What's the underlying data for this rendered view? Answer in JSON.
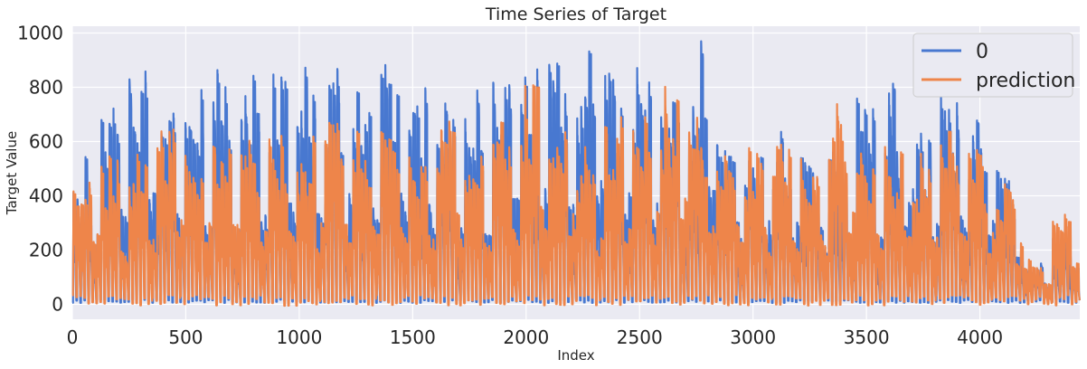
{
  "chart_data": {
    "type": "line",
    "title": "Time Series of Target",
    "xlabel": "Index",
    "ylabel": "Target Value",
    "xlim": [
      0,
      4440
    ],
    "ylim": [
      -55,
      1025
    ],
    "xticks": [
      0,
      500,
      1000,
      1500,
      2000,
      2500,
      3000,
      3500,
      4000
    ],
    "yticks": [
      0,
      200,
      400,
      600,
      800,
      1000
    ],
    "grid": true,
    "legend_position": "top-right",
    "series": [
      {
        "name": "0",
        "color": "#4878d0",
        "weekly_peaks": [
          570,
          750,
          870,
          720,
          790,
          870,
          910,
          870,
          880,
          870,
          900,
          900,
          860,
          780,
          800,
          870,
          900,
          970,
          980,
          870,
          890,
          860,
          970,
          660,
          650,
          670,
          590,
          610,
          780,
          860,
          680,
          810,
          740,
          520,
          180,
          280
        ]
      },
      {
        "name": "prediction",
        "color": "#ee854a",
        "weekly_peaks": [
          560,
          570,
          640,
          650,
          650,
          640,
          640,
          640,
          650,
          680,
          650,
          640,
          600,
          720,
          700,
          720,
          810,
          720,
          620,
          720,
          790,
          820,
          700,
          620,
          610,
          670,
          570,
          820,
          560,
          600,
          600,
          650,
          580,
          490,
          180,
          380
        ]
      }
    ]
  }
}
